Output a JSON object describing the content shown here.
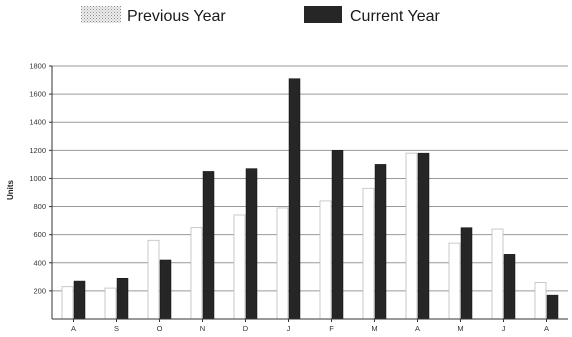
{
  "chart_data": {
    "type": "bar",
    "title": "",
    "xlabel": "",
    "ylabel": "Units",
    "ylim": [
      0,
      1800
    ],
    "yticks": [
      200,
      400,
      600,
      800,
      1000,
      1200,
      1400,
      1600,
      1800
    ],
    "grid": true,
    "legend_placement": "top",
    "categories": [
      "A",
      "S",
      "O",
      "N",
      "D",
      "J",
      "F",
      "M",
      "A",
      "M",
      "J",
      "A"
    ],
    "series": [
      {
        "name": "Previous Year",
        "color": "#ffffff",
        "pattern": "stippled",
        "values": [
          230,
          220,
          560,
          650,
          740,
          790,
          840,
          930,
          1180,
          540,
          640,
          260
        ]
      },
      {
        "name": "Current Year",
        "color": "#262626",
        "values": [
          270,
          290,
          420,
          1050,
          1070,
          1710,
          1200,
          1100,
          1180,
          650,
          460,
          170
        ]
      }
    ]
  }
}
